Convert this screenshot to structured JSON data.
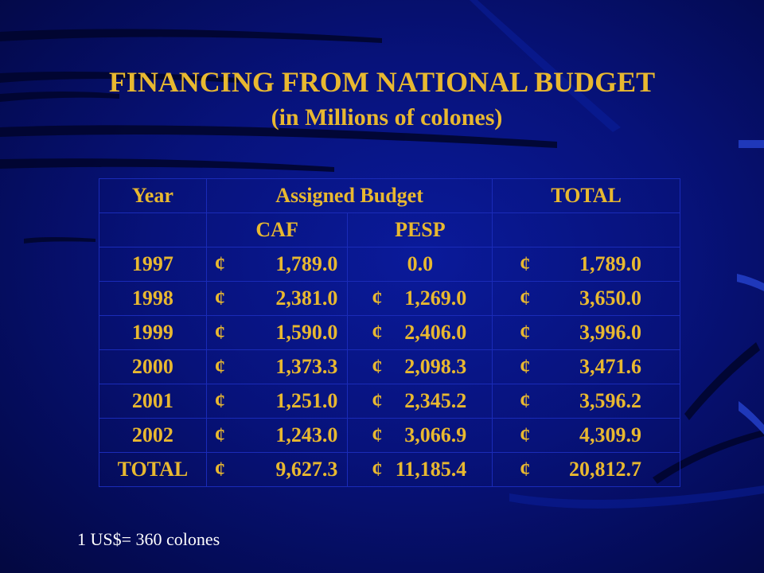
{
  "title": "FINANCING FROM NATIONAL BUDGET",
  "subtitle": "(in Millions of colones)",
  "table": {
    "headers": {
      "year": "Year",
      "assigned_budget": "Assigned Budget",
      "total": "TOTAL",
      "caf": "CAF",
      "pesp": "PESP"
    },
    "currency_symbol": "¢",
    "rows": [
      {
        "year": "1997",
        "caf": "1,789.0",
        "pesp": "0.0",
        "pesp_has_symbol": false,
        "total": "1,789.0"
      },
      {
        "year": "1998",
        "caf": "2,381.0",
        "pesp": "1,269.0",
        "pesp_has_symbol": true,
        "total": "3,650.0"
      },
      {
        "year": "1999",
        "caf": "1,590.0",
        "pesp": "2,406.0",
        "pesp_has_symbol": true,
        "total": "3,996.0"
      },
      {
        "year": "2000",
        "caf": "1,373.3",
        "pesp": "2,098.3",
        "pesp_has_symbol": true,
        "total": "3,471.6"
      },
      {
        "year": "2001",
        "caf": "1,251.0",
        "pesp": "2,345.2",
        "pesp_has_symbol": true,
        "total": "3,596.2"
      },
      {
        "year": "2002",
        "caf": "1,243.0",
        "pesp": "3,066.9",
        "pesp_has_symbol": true,
        "total": "4,309.9"
      },
      {
        "year": "TOTAL",
        "caf": "9,627.3",
        "pesp": "11,185.4",
        "pesp_has_symbol": true,
        "total": "20,812.7"
      }
    ]
  },
  "footnote": "1 US$= 360 colones",
  "colors": {
    "text_gold": "#e8b830",
    "background": "#07127a",
    "footnote": "#ffffff"
  }
}
